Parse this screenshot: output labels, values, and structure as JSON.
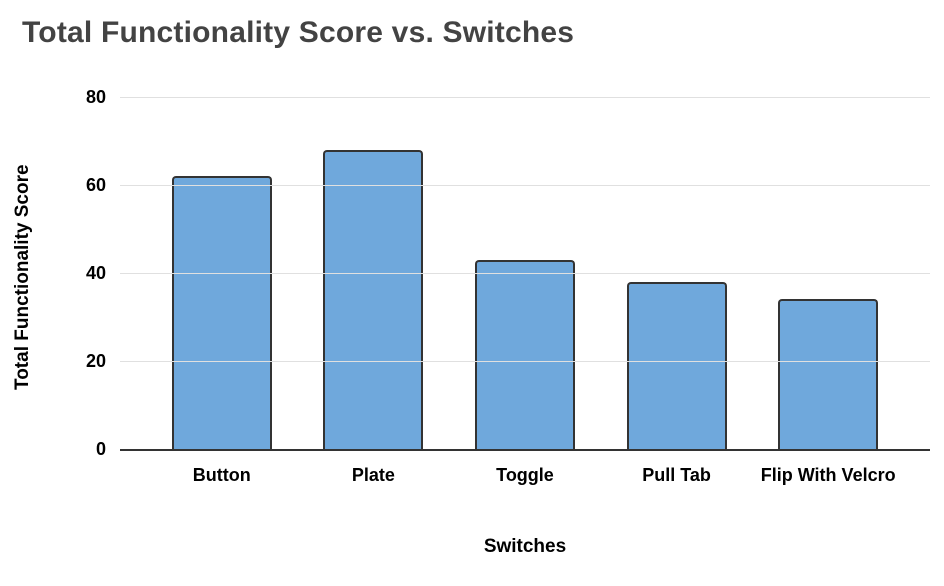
{
  "chart_data": {
    "type": "bar",
    "title": "Total Functionality Score vs. Switches",
    "xlabel": "Switches",
    "ylabel": "Total Functionality Score",
    "categories": [
      "Button",
      "Plate",
      "Toggle",
      "Pull Tab",
      "Flip With Velcro"
    ],
    "values": [
      62,
      68,
      43,
      38,
      34
    ],
    "yticks": [
      0,
      20,
      40,
      60,
      80
    ],
    "ylim": [
      0,
      80
    ],
    "grid": true,
    "legend_position": "none",
    "colors": {
      "bar_fill": "#6fa8dc",
      "bar_border": "#333333",
      "title_text": "#434343",
      "axis_text": "#000000",
      "gridline": "#e0e0e0",
      "axis_line": "#333333",
      "background": "#ffffff"
    }
  }
}
